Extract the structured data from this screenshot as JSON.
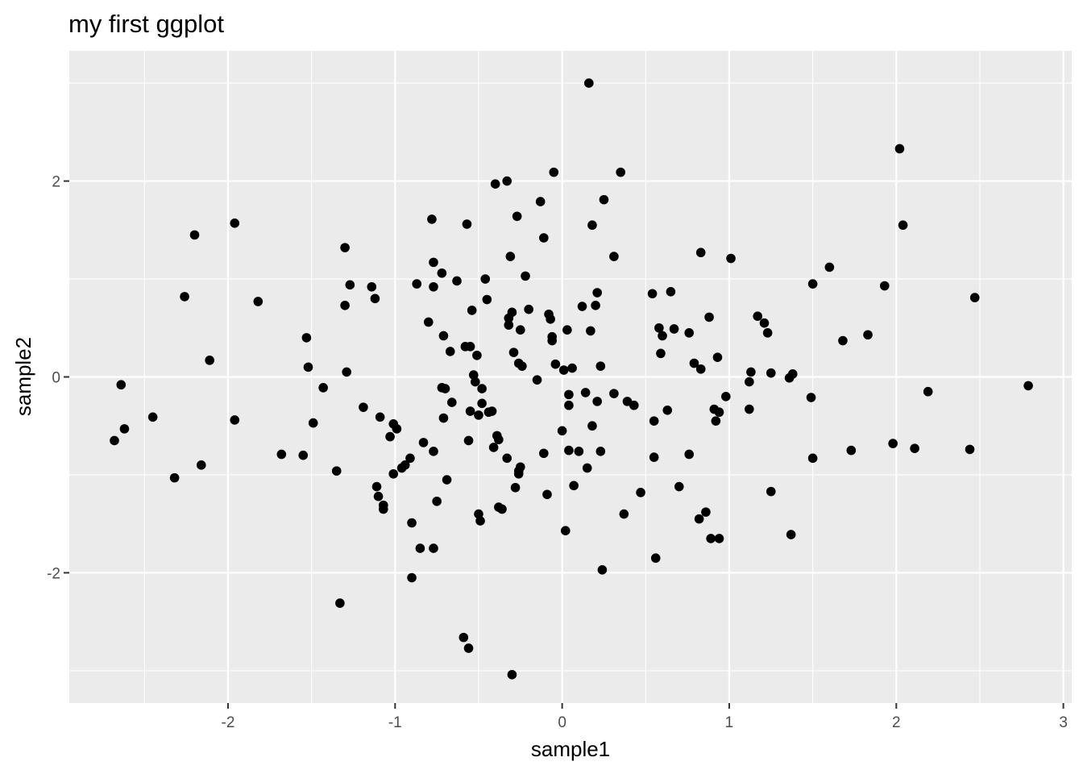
{
  "chart_data": {
    "type": "scatter",
    "title": "my first ggplot",
    "xlabel": "sample1",
    "ylabel": "sample2",
    "xlim": [
      -2.95,
      3.05
    ],
    "ylim": [
      -3.33,
      3.33
    ],
    "x_ticks": [
      -2,
      -1,
      0,
      1,
      2,
      3
    ],
    "x_tick_labels": [
      "-2",
      "-1",
      "0",
      "1",
      "2",
      "3"
    ],
    "y_ticks": [
      -2,
      0,
      2
    ],
    "y_tick_labels": [
      "-2",
      "0",
      "2"
    ],
    "x_minor_ticks": [
      -2.5,
      -1.5,
      -0.5,
      0.5,
      1.5,
      2.5
    ],
    "y_minor_ticks": [
      -3,
      -1,
      1,
      3
    ],
    "grid": true,
    "legend": "none",
    "colors": {
      "panel": "#EBEBEB",
      "grid": "#FFFFFF",
      "point": "#000000",
      "tick": "#333333"
    },
    "points": [
      [
        -2.68,
        -0.65
      ],
      [
        -2.64,
        -0.08
      ],
      [
        -2.62,
        -0.53
      ],
      [
        -2.45,
        -0.41
      ],
      [
        -2.32,
        -1.03
      ],
      [
        -2.26,
        0.82
      ],
      [
        -2.2,
        1.45
      ],
      [
        -2.16,
        -0.9
      ],
      [
        -2.11,
        0.17
      ],
      [
        -1.96,
        1.57
      ],
      [
        -1.96,
        -0.44
      ],
      [
        -1.82,
        0.77
      ],
      [
        -1.68,
        -0.79
      ],
      [
        -1.55,
        -0.8
      ],
      [
        -1.53,
        0.4
      ],
      [
        -1.52,
        0.1
      ],
      [
        -1.49,
        -0.47
      ],
      [
        -1.43,
        -0.11
      ],
      [
        -1.35,
        -0.96
      ],
      [
        -1.33,
        -2.31
      ],
      [
        -1.3,
        1.32
      ],
      [
        -1.3,
        0.73
      ],
      [
        -1.29,
        0.05
      ],
      [
        -1.27,
        0.94
      ],
      [
        -1.19,
        -0.31
      ],
      [
        -1.14,
        0.92
      ],
      [
        -1.12,
        0.8
      ],
      [
        -1.11,
        -1.12
      ],
      [
        -1.1,
        -1.22
      ],
      [
        -1.09,
        -0.41
      ],
      [
        -1.07,
        -1.31
      ],
      [
        -1.07,
        -1.35
      ],
      [
        -1.03,
        -0.61
      ],
      [
        -1.01,
        -0.48
      ],
      [
        -1.01,
        -0.99
      ],
      [
        -0.99,
        -0.53
      ],
      [
        -0.96,
        -0.93
      ],
      [
        -0.94,
        -0.9
      ],
      [
        -0.91,
        -0.83
      ],
      [
        -0.9,
        -1.49
      ],
      [
        -0.9,
        -2.05
      ],
      [
        -0.87,
        0.95
      ],
      [
        -0.85,
        -1.75
      ],
      [
        -0.83,
        -0.67
      ],
      [
        -0.8,
        0.56
      ],
      [
        -0.78,
        1.61
      ],
      [
        -0.77,
        0.92
      ],
      [
        -0.77,
        1.17
      ],
      [
        -0.77,
        -0.76
      ],
      [
        -0.77,
        -1.75
      ],
      [
        -0.75,
        -1.27
      ],
      [
        -0.72,
        1.06
      ],
      [
        -0.72,
        -0.11
      ],
      [
        -0.71,
        0.42
      ],
      [
        -0.71,
        -0.42
      ],
      [
        -0.7,
        -0.12
      ],
      [
        -0.69,
        -1.05
      ],
      [
        -0.67,
        0.26
      ],
      [
        -0.66,
        -0.26
      ],
      [
        -0.63,
        0.98
      ],
      [
        -0.59,
        -2.66
      ],
      [
        -0.58,
        0.31
      ],
      [
        -0.57,
        1.56
      ],
      [
        -0.56,
        -2.77
      ],
      [
        -0.56,
        -0.65
      ],
      [
        -0.55,
        -0.35
      ],
      [
        -0.55,
        0.31
      ],
      [
        -0.54,
        0.68
      ],
      [
        -0.53,
        0.02
      ],
      [
        -0.52,
        -0.05
      ],
      [
        -0.51,
        0.22
      ],
      [
        -0.5,
        -1.4
      ],
      [
        -0.5,
        -0.39
      ],
      [
        -0.49,
        -1.47
      ],
      [
        -0.48,
        -0.27
      ],
      [
        -0.48,
        -0.12
      ],
      [
        -0.46,
        1.0
      ],
      [
        -0.45,
        0.79
      ],
      [
        -0.44,
        -0.36
      ],
      [
        -0.42,
        -0.35
      ],
      [
        -0.41,
        -0.72
      ],
      [
        -0.4,
        1.97
      ],
      [
        -0.39,
        -0.6
      ],
      [
        -0.38,
        -0.64
      ],
      [
        -0.38,
        -1.33
      ],
      [
        -0.36,
        -1.35
      ],
      [
        -0.33,
        2.0
      ],
      [
        -0.33,
        -0.83
      ],
      [
        -0.32,
        0.6
      ],
      [
        -0.32,
        0.53
      ],
      [
        -0.31,
        1.23
      ],
      [
        -0.3,
        0.66
      ],
      [
        -0.3,
        -3.04
      ],
      [
        -0.29,
        0.25
      ],
      [
        -0.28,
        -1.13
      ],
      [
        -0.27,
        1.64
      ],
      [
        -0.26,
        0.14
      ],
      [
        -0.26,
        -0.96
      ],
      [
        -0.26,
        -0.99
      ],
      [
        -0.25,
        0.48
      ],
      [
        -0.25,
        -0.92
      ],
      [
        -0.24,
        0.11
      ],
      [
        -0.22,
        1.03
      ],
      [
        -0.2,
        0.69
      ],
      [
        -0.15,
        -0.03
      ],
      [
        -0.13,
        1.79
      ],
      [
        -0.11,
        1.42
      ],
      [
        -0.11,
        -0.78
      ],
      [
        -0.09,
        -1.2
      ],
      [
        -0.08,
        0.64
      ],
      [
        -0.07,
        0.59
      ],
      [
        -0.06,
        0.41
      ],
      [
        -0.06,
        0.37
      ],
      [
        -0.05,
        2.09
      ],
      [
        -0.04,
        0.13
      ],
      [
        0.0,
        -0.55
      ],
      [
        0.01,
        0.07
      ],
      [
        0.02,
        -1.57
      ],
      [
        0.03,
        0.48
      ],
      [
        0.04,
        -0.75
      ],
      [
        0.04,
        -0.18
      ],
      [
        0.04,
        -0.29
      ],
      [
        0.06,
        0.09
      ],
      [
        0.07,
        -1.11
      ],
      [
        0.1,
        -0.76
      ],
      [
        0.12,
        0.72
      ],
      [
        0.14,
        -0.16
      ],
      [
        0.15,
        -0.93
      ],
      [
        0.16,
        3.0
      ],
      [
        0.17,
        0.47
      ],
      [
        0.18,
        1.55
      ],
      [
        0.18,
        -0.5
      ],
      [
        0.2,
        0.73
      ],
      [
        0.21,
        0.86
      ],
      [
        0.21,
        -0.25
      ],
      [
        0.23,
        -0.76
      ],
      [
        0.23,
        0.11
      ],
      [
        0.24,
        -1.97
      ],
      [
        0.25,
        1.81
      ],
      [
        0.31,
        1.23
      ],
      [
        0.31,
        -0.17
      ],
      [
        0.35,
        2.09
      ],
      [
        0.37,
        -1.4
      ],
      [
        0.39,
        -0.25
      ],
      [
        0.43,
        -0.29
      ],
      [
        0.47,
        -1.18
      ],
      [
        0.54,
        0.85
      ],
      [
        0.55,
        -0.82
      ],
      [
        0.55,
        -0.45
      ],
      [
        0.56,
        -1.85
      ],
      [
        0.58,
        0.5
      ],
      [
        0.59,
        0.24
      ],
      [
        0.6,
        0.42
      ],
      [
        0.63,
        -0.34
      ],
      [
        0.65,
        0.87
      ],
      [
        0.67,
        0.49
      ],
      [
        0.7,
        -1.12
      ],
      [
        0.76,
        0.45
      ],
      [
        0.76,
        -0.79
      ],
      [
        0.79,
        0.14
      ],
      [
        0.83,
        1.27
      ],
      [
        0.83,
        0.08
      ],
      [
        0.86,
        -1.38
      ],
      [
        0.82,
        -1.45
      ],
      [
        0.88,
        0.61
      ],
      [
        0.89,
        -1.65
      ],
      [
        0.91,
        -0.33
      ],
      [
        0.92,
        -0.45
      ],
      [
        0.93,
        0.2
      ],
      [
        0.94,
        -1.65
      ],
      [
        0.94,
        -0.36
      ],
      [
        0.98,
        -0.2
      ],
      [
        1.01,
        1.21
      ],
      [
        1.12,
        -0.05
      ],
      [
        1.12,
        -0.33
      ],
      [
        1.13,
        0.05
      ],
      [
        1.17,
        0.62
      ],
      [
        1.21,
        0.55
      ],
      [
        1.23,
        0.45
      ],
      [
        1.25,
        0.04
      ],
      [
        1.25,
        -1.17
      ],
      [
        1.36,
        -0.01
      ],
      [
        1.38,
        0.03
      ],
      [
        1.37,
        -1.61
      ],
      [
        1.49,
        -0.21
      ],
      [
        1.5,
        0.95
      ],
      [
        1.5,
        -0.83
      ],
      [
        1.6,
        1.12
      ],
      [
        1.68,
        0.37
      ],
      [
        1.73,
        -0.75
      ],
      [
        1.83,
        0.43
      ],
      [
        1.93,
        0.93
      ],
      [
        1.98,
        -0.68
      ],
      [
        2.02,
        2.33
      ],
      [
        2.04,
        1.55
      ],
      [
        2.11,
        -0.73
      ],
      [
        2.19,
        -0.15
      ],
      [
        2.44,
        -0.74
      ],
      [
        2.47,
        0.81
      ],
      [
        2.79,
        -0.09
      ]
    ]
  }
}
